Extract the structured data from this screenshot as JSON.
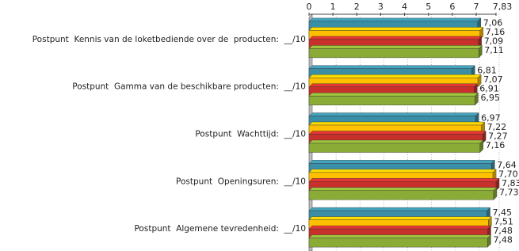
{
  "chart_data": {
    "type": "bar",
    "orientation": "horizontal",
    "categories": [
      "Postpunt  Kennis van de loketbediende over de  producten:  __/10",
      "Postpunt  Gamma van de beschikbare producten:  __/10",
      "Postpunt  Wachttijd:  __/10",
      "Postpunt  Openingsuren:  __/10",
      "Postpunt  Algemene tevredenheid:  __/10"
    ],
    "series": [
      {
        "color": "#3a8fa6",
        "values": [
          7.06,
          6.81,
          6.97,
          7.64,
          7.45
        ],
        "value_labels": [
          "7,06",
          "6,81",
          "6,97",
          "7,64",
          "7,45"
        ]
      },
      {
        "color": "#ffc000",
        "values": [
          7.16,
          7.07,
          7.22,
          7.7,
          7.51
        ],
        "value_labels": [
          "7,16",
          "7,07",
          "7,22",
          "7,70",
          "7,51"
        ]
      },
      {
        "color": "#c8302c",
        "values": [
          7.09,
          6.91,
          7.27,
          7.83,
          7.48
        ],
        "value_labels": [
          "7,09",
          "6,91",
          "7,27",
          "7,83",
          "7,48"
        ]
      },
      {
        "color": "#8aab35",
        "values": [
          7.11,
          6.95,
          7.16,
          7.73,
          7.48
        ],
        "value_labels": [
          "7,11",
          "6,95",
          "7,16",
          "7,73",
          "7,48"
        ]
      }
    ],
    "xlim": [
      0,
      7.83
    ],
    "xticks": [
      0,
      1,
      2,
      3,
      4,
      5,
      6,
      7,
      {
        "value": 7.83,
        "label": "7,83"
      }
    ],
    "grid": true
  }
}
